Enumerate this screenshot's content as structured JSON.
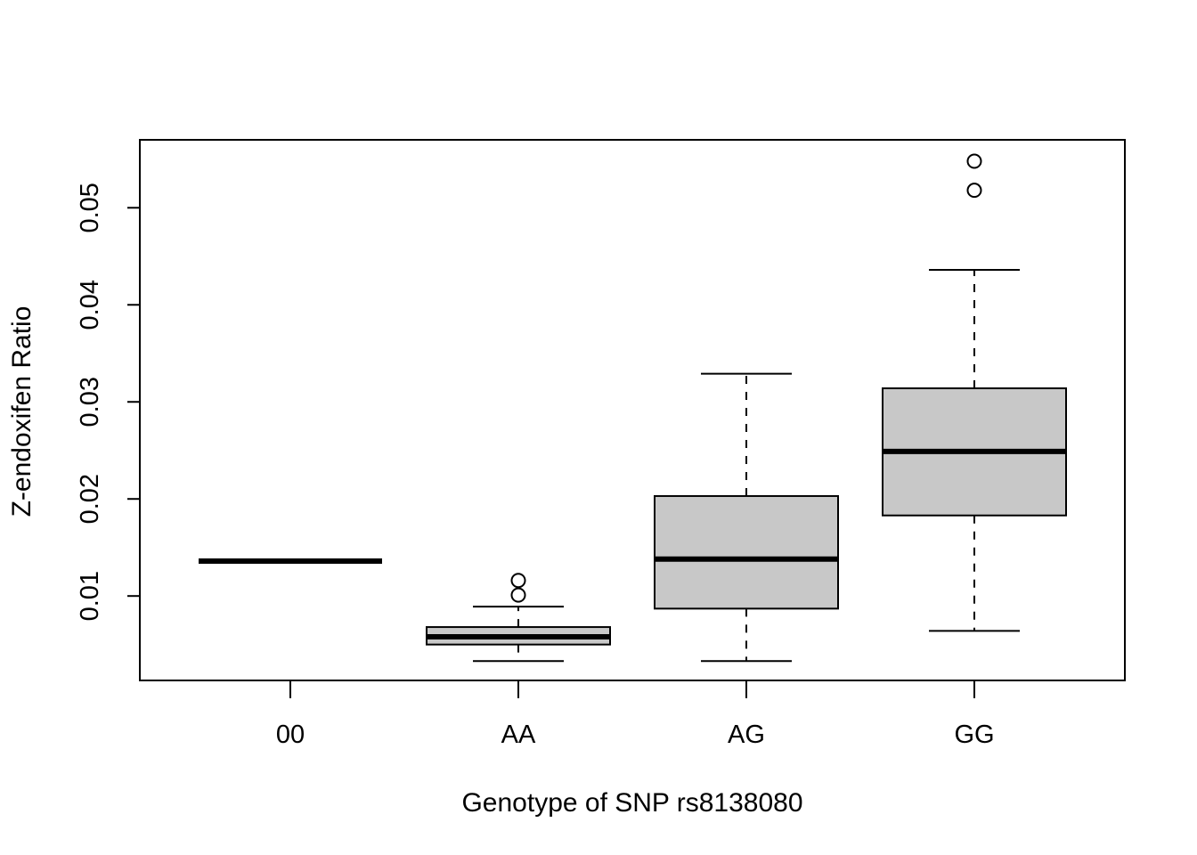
{
  "chart_data": {
    "type": "boxplot",
    "title": "",
    "xlabel": "Genotype of SNP rs8138080",
    "ylabel": "Z-endoxifen Ratio",
    "ylim": [
      0.0013,
      0.057
    ],
    "yticks": [
      0.01,
      0.02,
      0.03,
      0.04,
      0.05
    ],
    "ytick_labels": [
      "0.01",
      "0.02",
      "0.03",
      "0.04",
      "0.05"
    ],
    "categories": [
      "00",
      "AA",
      "AG",
      "GG"
    ],
    "box_fill": "#c8c8c8",
    "line_color": "#000000",
    "grid": false,
    "legend": "none",
    "boxes": [
      {
        "category": "00",
        "whisker_low": 0.0136,
        "q1": 0.0136,
        "median": 0.0136,
        "q3": 0.0136,
        "whisker_high": 0.0136,
        "outliers": []
      },
      {
        "category": "AA",
        "whisker_low": 0.0033,
        "q1": 0.005,
        "median": 0.0058,
        "q3": 0.0068,
        "whisker_high": 0.0089,
        "outliers": [
          0.0101,
          0.0116
        ]
      },
      {
        "category": "AG",
        "whisker_low": 0.0033,
        "q1": 0.0087,
        "median": 0.0138,
        "q3": 0.0203,
        "whisker_high": 0.0329,
        "outliers": []
      },
      {
        "category": "GG",
        "whisker_low": 0.0064,
        "q1": 0.0183,
        "median": 0.0249,
        "q3": 0.0314,
        "whisker_high": 0.0436,
        "outliers": [
          0.0518,
          0.0548
        ]
      }
    ]
  }
}
